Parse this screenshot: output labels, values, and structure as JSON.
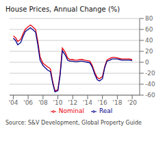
{
  "chart_data": {
    "type": "line",
    "title": "House Prices, Annual Change (%)",
    "source": "Source: S&V Development, Global Property Guide",
    "x": [
      2004.0,
      2004.3,
      2004.6,
      2005.0,
      2005.3,
      2005.6,
      2006.0,
      2006.3,
      2006.6,
      2007.0,
      2007.3,
      2007.6,
      2008.0,
      2008.3,
      2008.6,
      2009.0,
      2009.3,
      2009.6,
      2010.0,
      2010.3,
      2010.6,
      2011.0,
      2011.3,
      2011.6,
      2012.0,
      2012.3,
      2012.6,
      2013.0,
      2013.3,
      2013.6,
      2014.0,
      2014.3,
      2014.6,
      2015.0,
      2015.3,
      2015.6,
      2016.0,
      2016.3,
      2016.6,
      2017.0,
      2017.3,
      2017.6,
      2018.0,
      2018.3,
      2018.6,
      2019.0,
      2019.3,
      2019.6,
      2020.0
    ],
    "series": [
      {
        "name": "Nominal",
        "color": "#e8000b",
        "values": [
          48,
          45,
          38,
          42,
          52,
          60,
          65,
          68,
          65,
          60,
          38,
          10,
          -2,
          -5,
          -8,
          -12,
          -35,
          -52,
          -50,
          -20,
          26,
          18,
          8,
          5,
          5,
          4,
          4,
          5,
          5,
          4,
          3,
          2,
          -5,
          -20,
          -28,
          -30,
          -26,
          -8,
          4,
          7,
          9,
          9,
          8,
          7,
          6,
          6,
          6,
          6,
          5
        ]
      },
      {
        "name": "Real",
        "color": "#00008b",
        "values": [
          44,
          40,
          32,
          36,
          47,
          56,
          60,
          63,
          60,
          55,
          32,
          4,
          -6,
          -10,
          -14,
          -17,
          -38,
          -54,
          -52,
          -24,
          21,
          13,
          4,
          2,
          2,
          1,
          1,
          2,
          2,
          1,
          0,
          -1,
          -8,
          -23,
          -32,
          -34,
          -30,
          -10,
          2,
          4,
          6,
          6,
          6,
          5,
          4,
          4,
          4,
          4,
          3
        ]
      }
    ],
    "xlim": [
      2003.5,
      2021.0
    ],
    "xticks": [
      {
        "value": 2004,
        "label": "'04"
      },
      {
        "value": 2006,
        "label": "'06"
      },
      {
        "value": 2008,
        "label": "'08"
      },
      {
        "value": 2010,
        "label": "'10"
      },
      {
        "value": 2012,
        "label": "'12"
      },
      {
        "value": 2014,
        "label": "'14"
      },
      {
        "value": 2016,
        "label": "'16"
      },
      {
        "value": 2018,
        "label": "'18"
      },
      {
        "value": 2020,
        "label": "'20"
      }
    ],
    "ylim": [
      -60,
      80
    ],
    "yticks": [
      -60,
      -40,
      -20,
      0,
      20,
      40,
      60,
      80
    ],
    "grid": true,
    "legend": "bottom"
  }
}
